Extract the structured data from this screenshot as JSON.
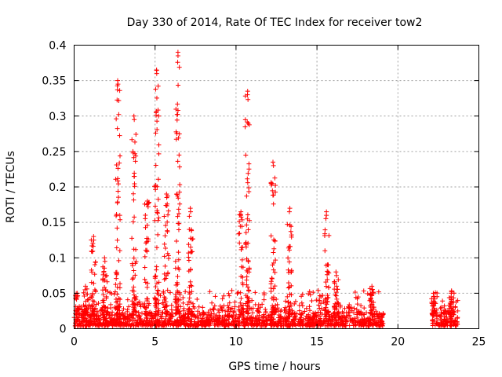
{
  "chart_data": {
    "type": "scatter",
    "title": "Day 330 of 2014, Rate Of TEC Index for receiver tow2",
    "xlabel": "GPS time / hours",
    "ylabel": "ROTI / TECUs",
    "xlim": [
      0,
      25
    ],
    "ylim": [
      0,
      0.4
    ],
    "xticks": [
      0,
      5,
      10,
      15,
      20,
      25
    ],
    "xtick_labels": [
      "0",
      "5",
      "10",
      "15",
      "20",
      "25"
    ],
    "yticks": [
      0,
      0.05,
      0.1,
      0.15,
      0.2,
      0.25,
      0.3,
      0.35,
      0.4
    ],
    "ytick_labels": [
      "0",
      "0.05",
      "0.1",
      "0.15",
      "0.2",
      "0.25",
      "0.3",
      "0.35",
      "0.4"
    ],
    "grid": true,
    "marker": "+",
    "marker_color": "#ff0000",
    "data_coverage_hours": [
      [
        0,
        19.1
      ],
      [
        22.1,
        23.7
      ]
    ],
    "background_level": {
      "typical": 0.02,
      "max": 0.06
    },
    "spikes": [
      {
        "x": 0.2,
        "peak": 0.05
      },
      {
        "x": 0.7,
        "peak": 0.06
      },
      {
        "x": 1.2,
        "peak": 0.13
      },
      {
        "x": 1.9,
        "peak": 0.1
      },
      {
        "x": 2.7,
        "peak": 0.35
      },
      {
        "x": 3.7,
        "peak": 0.3
      },
      {
        "x": 4.5,
        "peak": 0.18
      },
      {
        "x": 5.1,
        "peak": 0.365
      },
      {
        "x": 5.7,
        "peak": 0.19
      },
      {
        "x": 6.4,
        "peak": 0.39
      },
      {
        "x": 7.2,
        "peak": 0.17
      },
      {
        "x": 10.3,
        "peak": 0.165
      },
      {
        "x": 10.7,
        "peak": 0.335
      },
      {
        "x": 12.3,
        "peak": 0.235
      },
      {
        "x": 13.3,
        "peak": 0.17
      },
      {
        "x": 15.6,
        "peak": 0.165
      },
      {
        "x": 16.2,
        "peak": 0.08
      },
      {
        "x": 18.4,
        "peak": 0.06
      },
      {
        "x": 22.2,
        "peak": 0.05
      },
      {
        "x": 23.3,
        "peak": 0.05
      }
    ]
  }
}
